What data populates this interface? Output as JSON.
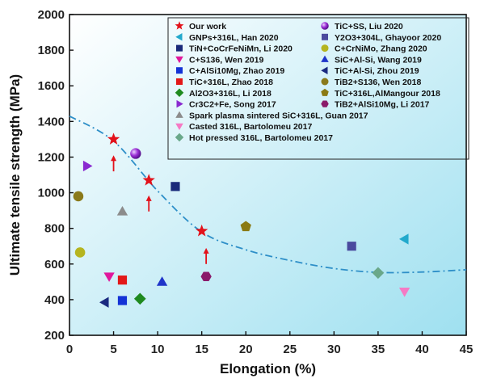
{
  "chart_data": {
    "type": "scatter",
    "xlabel": "Elongation (%)",
    "ylabel": "Ultimate tensile strength (MPa)",
    "xlim": [
      0,
      45
    ],
    "ylim": [
      200,
      2000
    ],
    "x_ticks": [
      "0",
      "5",
      "10",
      "15",
      "20",
      "25",
      "30",
      "35",
      "40",
      "45"
    ],
    "y_ticks": [
      "200",
      "400",
      "600",
      "800",
      "1000",
      "1200",
      "1400",
      "1600",
      "1800",
      "2000"
    ],
    "grid": false,
    "legend_position": "top-right",
    "background": "gradient light blue",
    "series": [
      {
        "name": "Our work",
        "marker": "star",
        "color": "#e3121b",
        "points": [
          [
            5,
            1300
          ],
          [
            9,
            1070
          ],
          [
            15,
            785
          ]
        ]
      },
      {
        "name": "TiC+SS, Liu 2020",
        "marker": "sphere",
        "color": "#9b2fd6",
        "points": [
          [
            7.5,
            1220
          ]
        ]
      },
      {
        "name": "GNPs+316L, Han 2020",
        "marker": "triangle-left",
        "color": "#22a9cc",
        "points": [
          [
            38,
            740
          ]
        ]
      },
      {
        "name": "Y2O3+304L, Ghayoor 2020",
        "marker": "square",
        "color": "#4a4a9e",
        "points": [
          [
            32,
            700
          ]
        ]
      },
      {
        "name": "TiN+CoCrFeNiMn, Li 2020",
        "marker": "square",
        "color": "#1a2a7a",
        "points": [
          [
            12,
            1035
          ]
        ]
      },
      {
        "name": "C+CrNiMo, Zhang 2020",
        "marker": "circle",
        "color": "#b5b520",
        "points": [
          [
            1.2,
            665
          ]
        ]
      },
      {
        "name": "C+S136, Wen 2019",
        "marker": "triangle-down",
        "color": "#e0189c",
        "points": [
          [
            4.5,
            530
          ]
        ]
      },
      {
        "name": "SiC+Al-Si, Wang 2019",
        "marker": "triangle-up",
        "color": "#1f35c9",
        "points": [
          [
            10.5,
            500
          ]
        ]
      },
      {
        "name": "C+AlSi10Mg, Zhao 2019",
        "marker": "square",
        "color": "#1433d6",
        "points": [
          [
            6,
            395
          ]
        ]
      },
      {
        "name": "TiC+Al-Si, Zhou 2019",
        "marker": "triangle-left",
        "color": "#1a2a80",
        "points": [
          [
            4,
            385
          ]
        ]
      },
      {
        "name": "TiC+316L, Zhao 2018",
        "marker": "square",
        "color": "#e31818",
        "points": [
          [
            6,
            510
          ]
        ]
      },
      {
        "name": "TiB2+S136, Wen 2018",
        "marker": "circle",
        "color": "#8a7a1a",
        "points": [
          [
            1,
            980
          ]
        ]
      },
      {
        "name": "Al2O3+316L, Li 2018",
        "marker": "diamond",
        "color": "#1f8a1f",
        "points": [
          [
            8,
            405
          ]
        ]
      },
      {
        "name": "TiC+316L,AlMangour 2018",
        "marker": "pentagon",
        "color": "#8a7a14",
        "points": [
          [
            20,
            810
          ]
        ]
      },
      {
        "name": "Cr3C2+Fe, Song 2017",
        "marker": "triangle-right",
        "color": "#8a2ad0",
        "points": [
          [
            2,
            1150
          ]
        ]
      },
      {
        "name": "TiB2+AlSi10Mg, Li 2017",
        "marker": "hexagon",
        "color": "#8a1a6a",
        "points": [
          [
            15.5,
            530
          ]
        ]
      },
      {
        "name": "Spark plasma sintered  SiC+316L, Guan 2017",
        "marker": "triangle-up",
        "color": "#8c8c8c",
        "points": [
          [
            6,
            895
          ]
        ]
      },
      {
        "name": "Casted 316L, Bartolomeu 2017",
        "marker": "triangle-down",
        "color": "#f57ac4",
        "points": [
          [
            38,
            445
          ]
        ]
      },
      {
        "name": "Hot pressed 316L, Bartolomeu 2017",
        "marker": "diamond",
        "color": "#6aa88a",
        "points": [
          [
            35,
            550
          ]
        ]
      }
    ],
    "trend_line": {
      "style": "dash-dot",
      "color": "#2e8fc8",
      "points": [
        [
          0,
          1430
        ],
        [
          5,
          1290
        ],
        [
          10,
          1010
        ],
        [
          15,
          780
        ],
        [
          20,
          680
        ],
        [
          25,
          620
        ],
        [
          30,
          575
        ],
        [
          35,
          553
        ],
        [
          40,
          555
        ],
        [
          45,
          568
        ]
      ]
    },
    "annotation_arrows": [
      {
        "color": "#e3121b",
        "from": [
          5,
          1120
        ],
        "to": [
          5,
          1210
        ]
      },
      {
        "color": "#e3121b",
        "from": [
          9,
          895
        ],
        "to": [
          9,
          985
        ]
      },
      {
        "color": "#e3121b",
        "from": [
          15.5,
          600
        ],
        "to": [
          15.5,
          690
        ]
      }
    ]
  }
}
